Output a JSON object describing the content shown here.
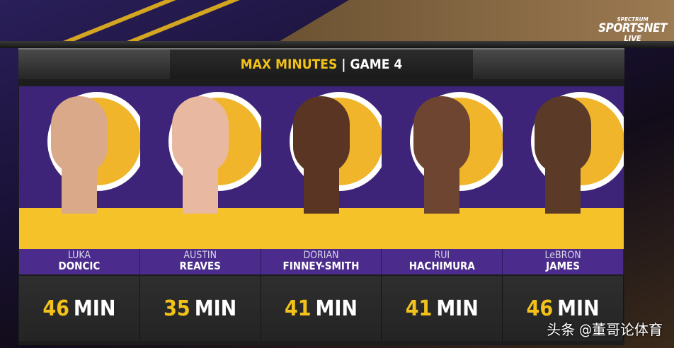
{
  "broadcaster": {
    "line1": "SPECTRUM",
    "line2": "SPORTSNET",
    "line3": "LIVE"
  },
  "header": {
    "title_highlight": "MAX MINUTES",
    "separator": "|",
    "title_rest": "GAME 4"
  },
  "players": [
    {
      "first": "LUKA",
      "last": "DONCIC",
      "minutes": "46",
      "unit": "MIN",
      "skin": "#d9a98a"
    },
    {
      "first": "AUSTIN",
      "last": "REAVES",
      "minutes": "35",
      "unit": "MIN",
      "skin": "#e8b9a0"
    },
    {
      "first": "DORIAN",
      "last": "FINNEY-SMITH",
      "minutes": "41",
      "unit": "MIN",
      "skin": "#5a3523"
    },
    {
      "first": "RUI",
      "last": "HACHIMURA",
      "minutes": "41",
      "unit": "MIN",
      "skin": "#6e4530"
    },
    {
      "first": "LeBRON",
      "last": "JAMES",
      "minutes": "46",
      "unit": "MIN",
      "skin": "#5c3a28"
    }
  ],
  "watermark": "头条 @董哥论体育",
  "colors": {
    "gold": "#f2c21b",
    "purple": "#4b2c8c"
  }
}
